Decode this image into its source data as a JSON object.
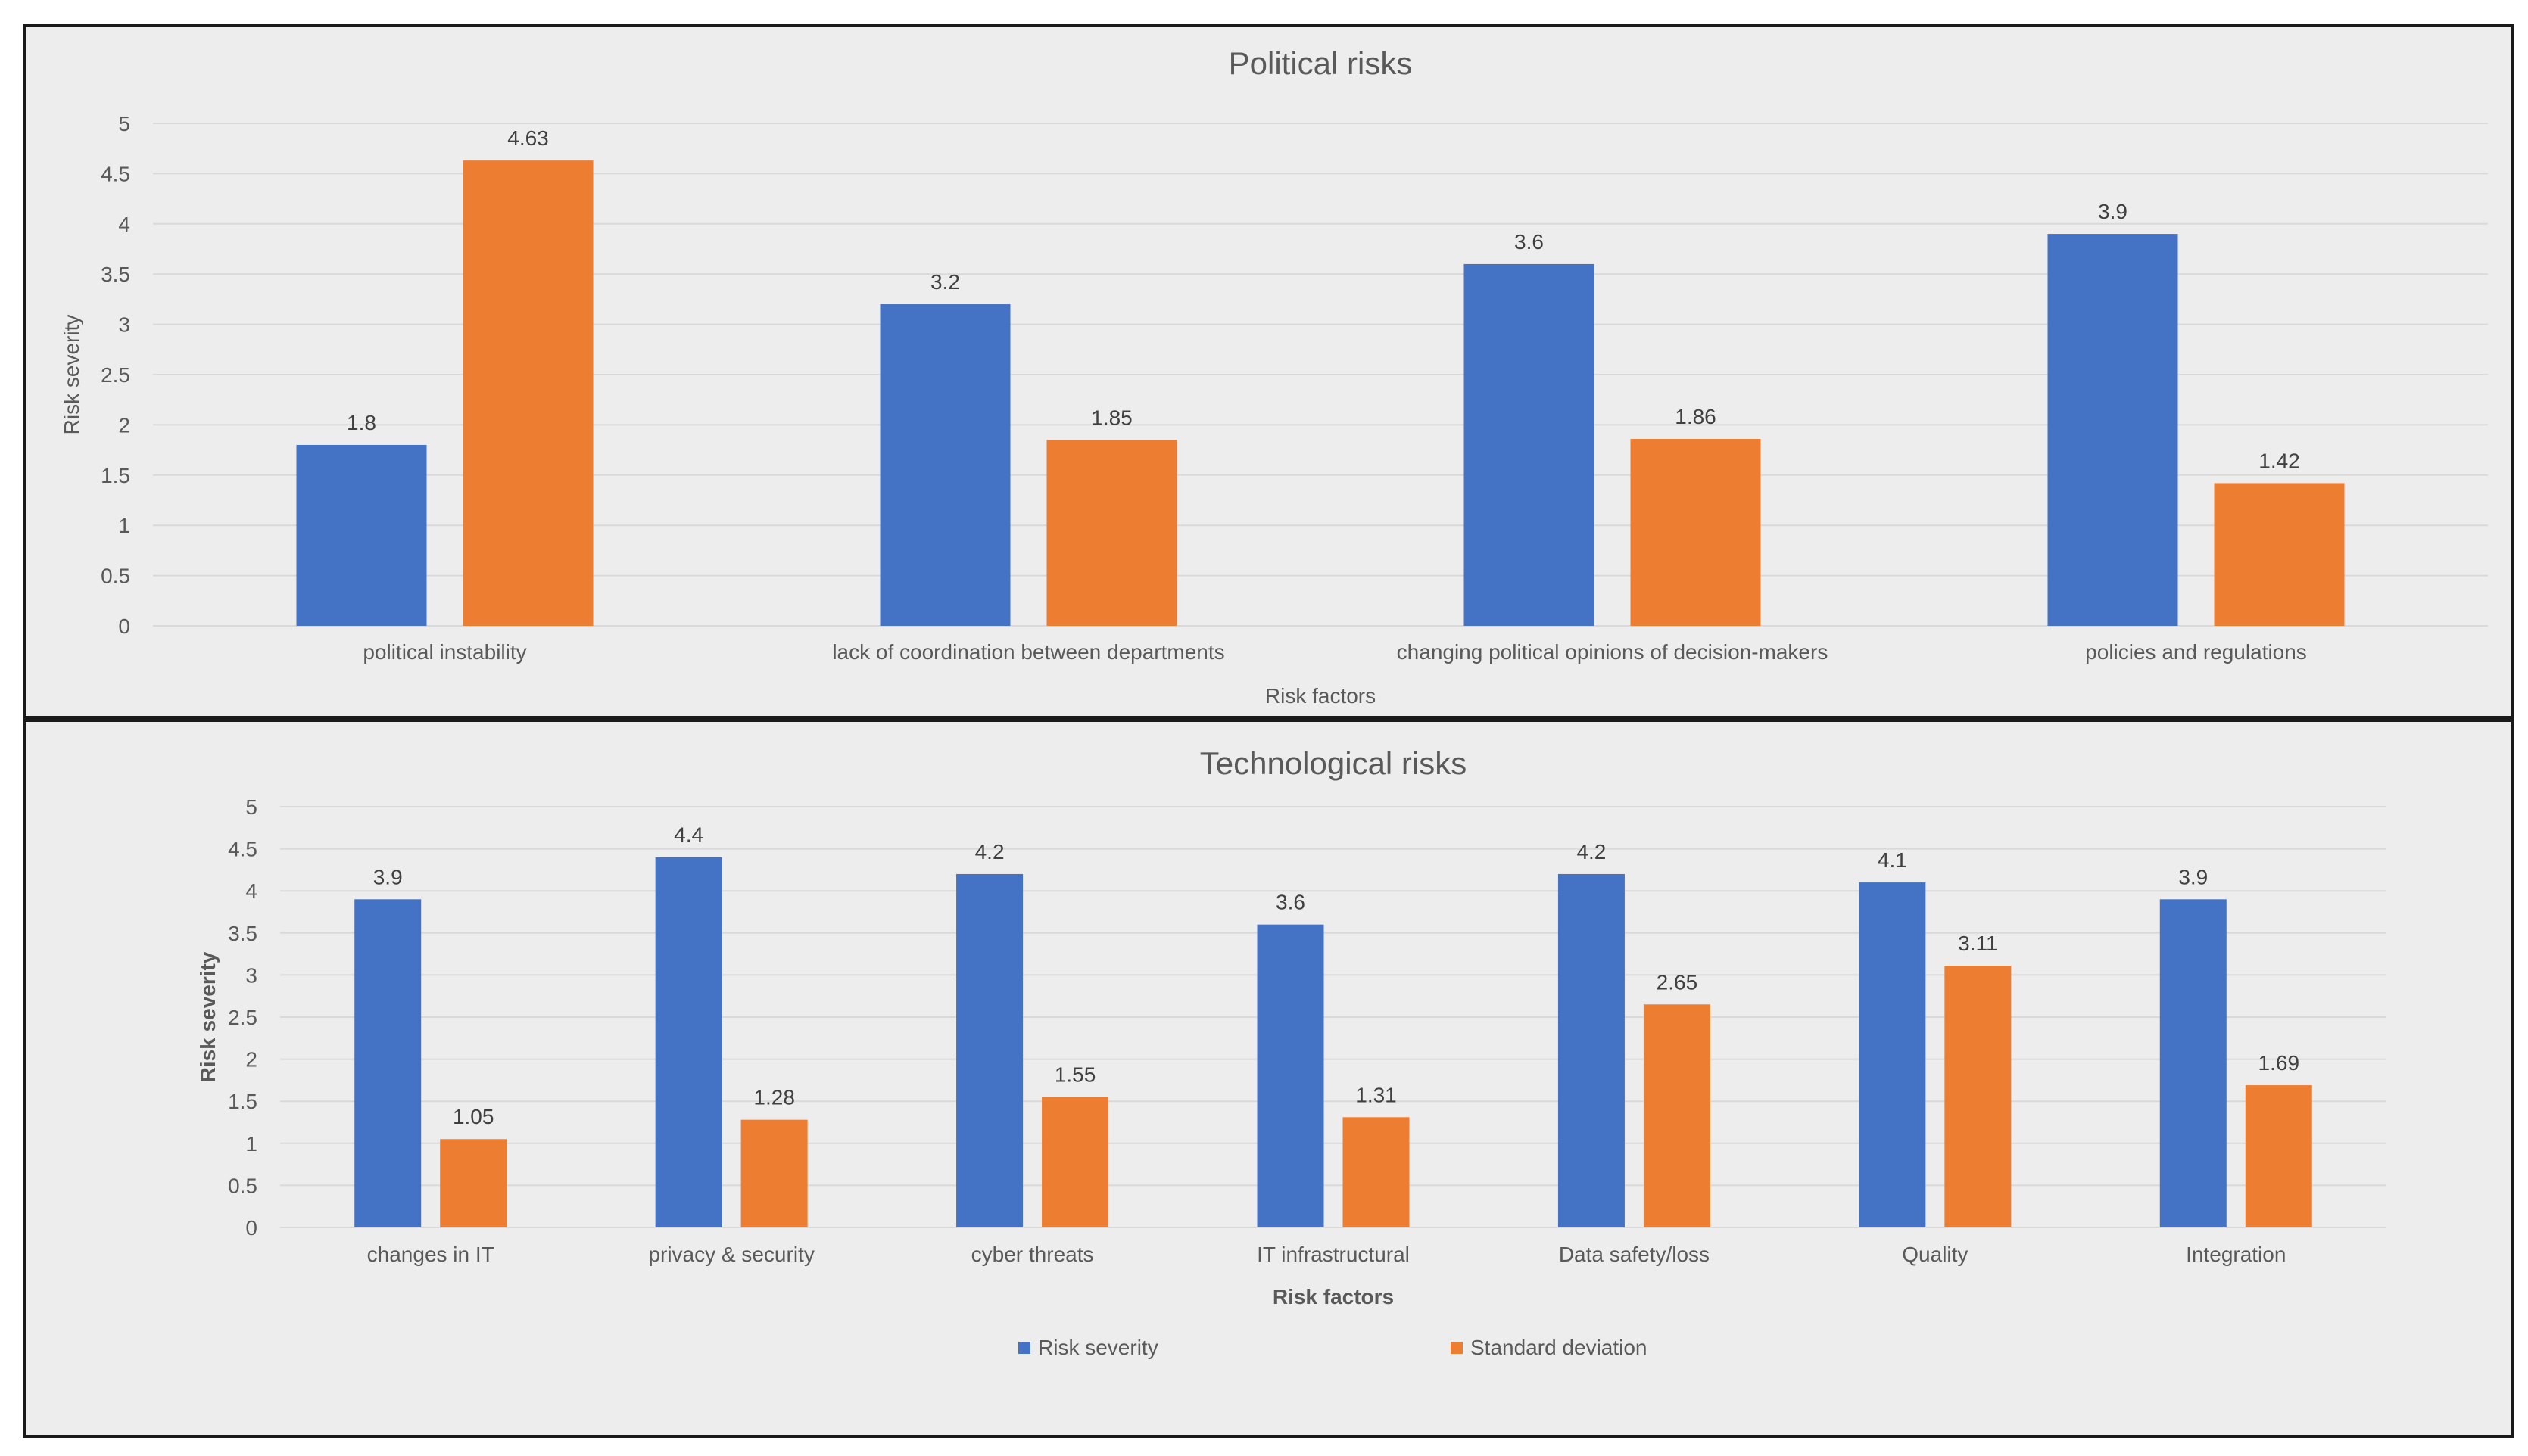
{
  "colors": {
    "risk_severity": "#4472c4",
    "standard_deviation": "#ed7d31",
    "gridline": "#d9d9d9",
    "text": "#595959",
    "title": "#595959"
  },
  "chart_data": [
    {
      "type": "bar",
      "title": "Political risks",
      "xlabel": "Risk factors",
      "ylabel": "Risk severity",
      "ylim": [
        0,
        5
      ],
      "yticks": [
        "0",
        "0.5",
        "1",
        "1.5",
        "2",
        "2.5",
        "3",
        "3.5",
        "4",
        "4.5",
        "5"
      ],
      "categories": [
        "political instability",
        "lack of coordination between departments",
        "changing political opinions of decision-makers",
        "policies and regulations"
      ],
      "series": [
        {
          "name": "Risk severity",
          "values": [
            1.8,
            3.2,
            3.6,
            3.9
          ],
          "labels": [
            "1.8",
            "3.2",
            "3.6",
            "3.9"
          ]
        },
        {
          "name": "Standard deviation",
          "values": [
            4.63,
            1.85,
            1.86,
            1.42
          ],
          "labels": [
            "4.63",
            "1.85",
            "1.86",
            "1.42"
          ]
        }
      ],
      "grid": true,
      "legend": "none"
    },
    {
      "type": "bar",
      "title": "Technological risks",
      "xlabel": "Risk factors",
      "ylabel": "Risk severity",
      "ylim": [
        0,
        5
      ],
      "yticks": [
        "0",
        "0.5",
        "1",
        "1.5",
        "2",
        "2.5",
        "3",
        "3.5",
        "4",
        "4.5",
        "5"
      ],
      "categories": [
        "changes in IT",
        "privacy & security",
        "cyber threats",
        "IT infrastructural",
        "Data safety/loss",
        "Quality",
        "Integration"
      ],
      "series": [
        {
          "name": "Risk severity",
          "values": [
            3.9,
            4.4,
            4.2,
            3.6,
            4.2,
            4.1,
            3.9
          ],
          "labels": [
            "3.9",
            "4.4",
            "4.2",
            "3.6",
            "4.2",
            "4.1",
            "3.9"
          ]
        },
        {
          "name": "Standard deviation",
          "values": [
            1.05,
            1.28,
            1.55,
            1.31,
            2.65,
            3.11,
            1.69
          ],
          "labels": [
            "1.05",
            "1.28",
            "1.55",
            "1.31",
            "2.65",
            "3.11",
            "1.69"
          ]
        }
      ],
      "grid": true,
      "legend": "bottom"
    }
  ]
}
